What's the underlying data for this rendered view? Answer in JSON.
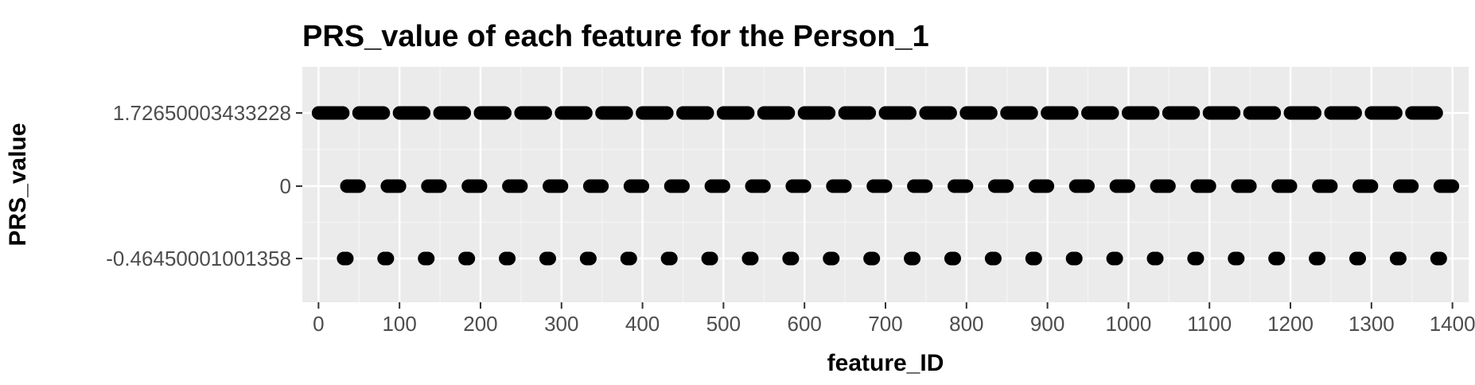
{
  "chart_data": {
    "type": "scatter",
    "title": "PRS_value of each feature for the Person_1",
    "xlabel": "feature_ID",
    "ylabel": "PRS_value",
    "xlim": [
      -20,
      1420
    ],
    "x_ticks": [
      0,
      100,
      200,
      300,
      400,
      500,
      600,
      700,
      800,
      900,
      1000,
      1100,
      1200,
      1300,
      1400
    ],
    "x_tick_labels": [
      "0",
      "100",
      "200",
      "300",
      "400",
      "500",
      "600",
      "700",
      "800",
      "900",
      "1000",
      "1100",
      "1200",
      "1300",
      "1400"
    ],
    "y_levels": [
      "-0.46450001001358",
      "0",
      "1.72650003433228"
    ],
    "y_tick_labels": [
      "-0.46450001001358",
      "0",
      "1.72650003433228"
    ],
    "grid": true,
    "background": "#ebebeb",
    "point_color": "#000000",
    "series": [
      {
        "y": "1.72650003433228",
        "x_ranges": [
          [
            0,
            30
          ],
          [
            50,
            80
          ],
          [
            100,
            130
          ],
          [
            150,
            180
          ],
          [
            200,
            230
          ],
          [
            250,
            280
          ],
          [
            300,
            330
          ],
          [
            350,
            380
          ],
          [
            400,
            430
          ],
          [
            450,
            480
          ],
          [
            500,
            530
          ],
          [
            550,
            580
          ],
          [
            600,
            630
          ],
          [
            650,
            680
          ],
          [
            700,
            730
          ],
          [
            750,
            780
          ],
          [
            800,
            830
          ],
          [
            850,
            880
          ],
          [
            900,
            930
          ],
          [
            950,
            980
          ],
          [
            1000,
            1030
          ],
          [
            1050,
            1080
          ],
          [
            1100,
            1130
          ],
          [
            1150,
            1180
          ],
          [
            1200,
            1230
          ],
          [
            1250,
            1280
          ],
          [
            1300,
            1330
          ],
          [
            1350,
            1380
          ]
        ]
      },
      {
        "y": "0",
        "x_ranges": [
          [
            35,
            50
          ],
          [
            85,
            100
          ],
          [
            135,
            150
          ],
          [
            185,
            200
          ],
          [
            235,
            250
          ],
          [
            285,
            300
          ],
          [
            335,
            350
          ],
          [
            385,
            400
          ],
          [
            435,
            450
          ],
          [
            485,
            500
          ],
          [
            535,
            550
          ],
          [
            585,
            600
          ],
          [
            635,
            650
          ],
          [
            685,
            700
          ],
          [
            735,
            750
          ],
          [
            785,
            800
          ],
          [
            835,
            850
          ],
          [
            885,
            900
          ],
          [
            935,
            950
          ],
          [
            985,
            1000
          ],
          [
            1035,
            1050
          ],
          [
            1085,
            1100
          ],
          [
            1135,
            1150
          ],
          [
            1185,
            1200
          ],
          [
            1235,
            1250
          ],
          [
            1285,
            1300
          ],
          [
            1335,
            1350
          ],
          [
            1385,
            1400
          ]
        ]
      },
      {
        "y": "-0.46450001001358",
        "x_ranges": [
          [
            31,
            35
          ],
          [
            81,
            85
          ],
          [
            131,
            135
          ],
          [
            181,
            185
          ],
          [
            231,
            235
          ],
          [
            281,
            285
          ],
          [
            331,
            335
          ],
          [
            381,
            385
          ],
          [
            431,
            435
          ],
          [
            481,
            485
          ],
          [
            531,
            535
          ],
          [
            581,
            585
          ],
          [
            631,
            635
          ],
          [
            681,
            685
          ],
          [
            731,
            735
          ],
          [
            781,
            785
          ],
          [
            831,
            835
          ],
          [
            881,
            885
          ],
          [
            931,
            935
          ],
          [
            981,
            985
          ],
          [
            1031,
            1035
          ],
          [
            1081,
            1085
          ],
          [
            1131,
            1135
          ],
          [
            1181,
            1185
          ],
          [
            1231,
            1235
          ],
          [
            1281,
            1285
          ],
          [
            1331,
            1335
          ],
          [
            1381,
            1385
          ]
        ]
      }
    ]
  }
}
